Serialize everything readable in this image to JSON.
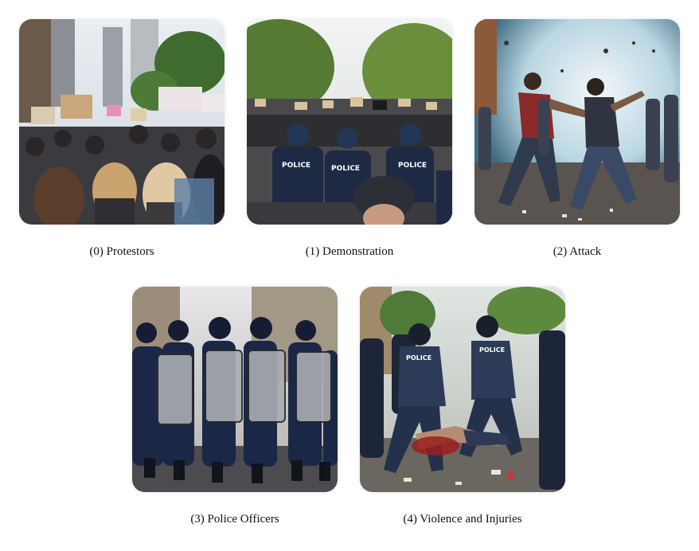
{
  "panels": [
    {
      "caption": "(0) Protestors",
      "image": "protest-crowd-with-signs-photo"
    },
    {
      "caption": "(1) Demonstration",
      "image": "police-at-demonstration-photo",
      "visible_text": "POLICE"
    },
    {
      "caption": "(2) Attack",
      "image": "street-fight-attack-photo"
    },
    {
      "caption": "(3) Police Officers",
      "image": "riot-police-line-with-shields-photo"
    },
    {
      "caption": "(4) Violence and Injuries",
      "image": "injured-person-on-ground-with-police-photo",
      "visible_text": "POLICE"
    }
  ]
}
